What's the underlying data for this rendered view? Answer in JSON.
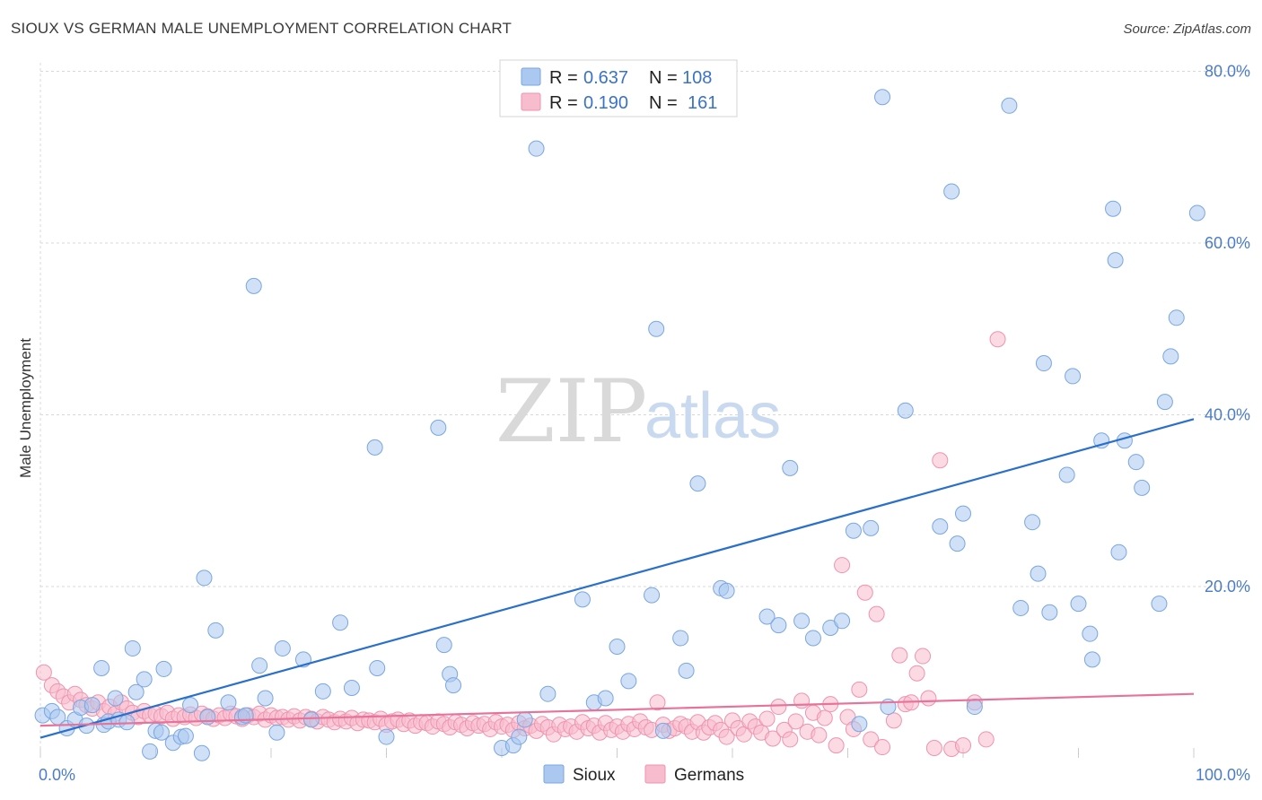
{
  "header": {
    "title": "SIOUX VS GERMAN MALE UNEMPLOYMENT CORRELATION CHART",
    "source": "Source: ZipAtlas.com"
  },
  "colors": {
    "sioux_fill": "#aac8f0",
    "sioux_stroke": "#7aa6e0",
    "sioux_line": "#2a6fcc",
    "germans_fill": "#f7bccd",
    "germans_stroke": "#ef93ae",
    "germans_line": "#e8739a",
    "grid": "#d8d8d8",
    "tick_text": "#4a7cc7"
  },
  "legend": {
    "rows": [
      {
        "r_label": "R =",
        "r_value": "0.637",
        "n_label": "N =",
        "n_value": "108"
      },
      {
        "r_label": "R =",
        "r_value": "0.190",
        "n_label": "N =",
        "n_value": "161"
      }
    ]
  },
  "watermark": {
    "part1": "ZIP",
    "part2": "atlas"
  },
  "chart_data": {
    "type": "scatter",
    "title": "SIOUX VS GERMAN MALE UNEMPLOYMENT CORRELATION CHART",
    "xlabel": "",
    "ylabel": "Male Unemployment",
    "xlim": [
      0,
      100
    ],
    "ylim": [
      -2.5,
      85
    ],
    "x_tick_labels": {
      "0": "0.0%",
      "100": "100.0%"
    },
    "y_ticks": [
      20,
      40,
      60,
      80
    ],
    "y_tick_labels": [
      "20.0%",
      "40.0%",
      "60.0%",
      "80.0%"
    ],
    "grid": true,
    "legend_position": "top-center",
    "series": [
      {
        "name": "Sioux",
        "R": 0.637,
        "N": 108,
        "trend": [
          [
            0,
            2.4
          ],
          [
            100,
            39.5
          ]
        ],
        "points": [
          [
            0.2,
            5
          ],
          [
            1,
            5.5
          ],
          [
            1.5,
            4.8
          ],
          [
            2.3,
            3.5
          ],
          [
            3,
            4.5
          ],
          [
            3.5,
            5.9
          ],
          [
            4,
            3.8
          ],
          [
            4.5,
            6.2
          ],
          [
            5.5,
            3.9
          ],
          [
            5.9,
            4.3
          ],
          [
            6.8,
            4.5
          ],
          [
            6.5,
            7
          ],
          [
            5.3,
            10.5
          ],
          [
            7.5,
            4.2
          ],
          [
            8,
            12.8
          ],
          [
            8.3,
            7.7
          ],
          [
            9,
            9.2
          ],
          [
            9.5,
            0.8
          ],
          [
            10,
            3.2
          ],
          [
            10.7,
            10.4
          ],
          [
            10.5,
            3
          ],
          [
            11.5,
            1.8
          ],
          [
            12.2,
            2.5
          ],
          [
            12.6,
            2.6
          ],
          [
            13,
            6.2
          ],
          [
            14,
            0.6
          ],
          [
            14.2,
            21
          ],
          [
            14.5,
            4.8
          ],
          [
            15.2,
            14.9
          ],
          [
            16.3,
            6.5
          ],
          [
            17.5,
            4.8
          ],
          [
            17.8,
            5
          ],
          [
            18.5,
            55
          ],
          [
            19,
            10.8
          ],
          [
            19.5,
            7
          ],
          [
            20.5,
            3
          ],
          [
            21,
            12.8
          ],
          [
            22.8,
            11.5
          ],
          [
            23.5,
            4.5
          ],
          [
            24.5,
            7.8
          ],
          [
            26,
            15.8
          ],
          [
            27,
            8.2
          ],
          [
            29,
            36.2
          ],
          [
            29.2,
            10.5
          ],
          [
            30,
            2.5
          ],
          [
            34.5,
            38.5
          ],
          [
            35,
            13.2
          ],
          [
            35.5,
            9.8
          ],
          [
            35.8,
            8.5
          ],
          [
            40,
            1.2
          ],
          [
            41,
            1.5
          ],
          [
            41.5,
            2.5
          ],
          [
            42,
            4.5
          ],
          [
            43,
            71
          ],
          [
            44,
            7.5
          ],
          [
            47,
            18.5
          ],
          [
            48,
            6.5
          ],
          [
            49,
            7
          ],
          [
            50,
            13
          ],
          [
            51,
            9
          ],
          [
            53,
            19
          ],
          [
            53.4,
            50
          ],
          [
            54,
            3.2
          ],
          [
            55.5,
            14
          ],
          [
            56,
            10.2
          ],
          [
            57,
            32
          ],
          [
            59,
            19.8
          ],
          [
            59.5,
            19.5
          ],
          [
            63,
            16.5
          ],
          [
            64,
            15.5
          ],
          [
            65,
            33.8
          ],
          [
            66,
            16
          ],
          [
            67,
            14
          ],
          [
            68.5,
            15.2
          ],
          [
            69.5,
            16
          ],
          [
            70.5,
            26.5
          ],
          [
            71,
            4
          ],
          [
            72,
            26.8
          ],
          [
            73,
            77
          ],
          [
            73.5,
            6
          ],
          [
            75,
            40.5
          ],
          [
            78,
            27
          ],
          [
            79,
            66
          ],
          [
            79.5,
            25
          ],
          [
            80,
            28.5
          ],
          [
            81,
            6
          ],
          [
            84,
            76
          ],
          [
            85,
            17.5
          ],
          [
            86,
            27.5
          ],
          [
            86.5,
            21.5
          ],
          [
            87,
            46
          ],
          [
            87.5,
            17
          ],
          [
            89,
            33
          ],
          [
            89.5,
            44.5
          ],
          [
            90,
            18
          ],
          [
            91,
            14.5
          ],
          [
            91.2,
            11.5
          ],
          [
            92,
            37
          ],
          [
            93,
            64
          ],
          [
            93.2,
            58
          ],
          [
            93.5,
            24
          ],
          [
            94,
            37
          ],
          [
            95,
            34.5
          ],
          [
            95.5,
            31.5
          ],
          [
            97,
            18
          ],
          [
            97.5,
            41.5
          ],
          [
            98,
            46.8
          ],
          [
            98.5,
            51.3
          ],
          [
            100.3,
            63.5
          ]
        ]
      },
      {
        "name": "Germans",
        "R": 0.19,
        "N": 161,
        "trend": [
          [
            0,
            3.8
          ],
          [
            100,
            7.5
          ]
        ],
        "points": [
          [
            0.3,
            10
          ],
          [
            1,
            8.5
          ],
          [
            1.5,
            7.8
          ],
          [
            2,
            7.2
          ],
          [
            2.5,
            6.5
          ],
          [
            3,
            7.5
          ],
          [
            3.5,
            6.8
          ],
          [
            4,
            6.2
          ],
          [
            4.5,
            5.8
          ],
          [
            5,
            6.5
          ],
          [
            5.5,
            5.5
          ],
          [
            6,
            6
          ],
          [
            6.5,
            5.2
          ],
          [
            7,
            6.5
          ],
          [
            7.5,
            5.8
          ],
          [
            8,
            5.3
          ],
          [
            8.5,
            4.8
          ],
          [
            9,
            5.5
          ],
          [
            9.5,
            5
          ],
          [
            10,
            5.2
          ],
          [
            10.5,
            4.9
          ],
          [
            11,
            5.3
          ],
          [
            11.5,
            4.6
          ],
          [
            12,
            5
          ],
          [
            12.5,
            4.8
          ],
          [
            13,
            5.1
          ],
          [
            13.5,
            4.7
          ],
          [
            14,
            5.2
          ],
          [
            14.5,
            4.9
          ],
          [
            15,
            4.6
          ],
          [
            15.5,
            5
          ],
          [
            16,
            4.7
          ],
          [
            16.5,
            5.2
          ],
          [
            17,
            4.9
          ],
          [
            17.5,
            4.6
          ],
          [
            18,
            5
          ],
          [
            18.5,
            4.8
          ],
          [
            19,
            5.2
          ],
          [
            19.5,
            4.5
          ],
          [
            20,
            5
          ],
          [
            20.5,
            4.7
          ],
          [
            21,
            4.8
          ],
          [
            21.5,
            4.5
          ],
          [
            22,
            4.9
          ],
          [
            22.5,
            4.4
          ],
          [
            23,
            4.8
          ],
          [
            23.5,
            4.6
          ],
          [
            24,
            4.3
          ],
          [
            24.5,
            4.8
          ],
          [
            25,
            4.5
          ],
          [
            25.5,
            4.2
          ],
          [
            26,
            4.6
          ],
          [
            26.5,
            4.3
          ],
          [
            27,
            4.7
          ],
          [
            27.5,
            4.1
          ],
          [
            28,
            4.5
          ],
          [
            28.5,
            4.4
          ],
          [
            29,
            4.2
          ],
          [
            29.5,
            4.6
          ],
          [
            30,
            3.9
          ],
          [
            30.5,
            4.3
          ],
          [
            31,
            4.5
          ],
          [
            31.5,
            4
          ],
          [
            32,
            4.4
          ],
          [
            32.5,
            3.8
          ],
          [
            33,
            4.2
          ],
          [
            33.5,
            4.1
          ],
          [
            34,
            3.7
          ],
          [
            34.5,
            4.3
          ],
          [
            35,
            4
          ],
          [
            35.5,
            3.6
          ],
          [
            36,
            4.2
          ],
          [
            36.5,
            3.9
          ],
          [
            37,
            3.5
          ],
          [
            37.5,
            4.1
          ],
          [
            38,
            3.8
          ],
          [
            38.5,
            4
          ],
          [
            39,
            3.4
          ],
          [
            39.5,
            4.2
          ],
          [
            40,
            3.7
          ],
          [
            40.5,
            3.9
          ],
          [
            41,
            3.3
          ],
          [
            41.5,
            4.1
          ],
          [
            42,
            3.5
          ],
          [
            42.5,
            3.8
          ],
          [
            43,
            3.2
          ],
          [
            43.5,
            4
          ],
          [
            44,
            3.6
          ],
          [
            44.5,
            2.8
          ],
          [
            45,
            3.9
          ],
          [
            45.5,
            3.4
          ],
          [
            46,
            3.7
          ],
          [
            46.5,
            3.1
          ],
          [
            47,
            4.2
          ],
          [
            47.5,
            3.5
          ],
          [
            48,
            3.8
          ],
          [
            48.5,
            3
          ],
          [
            49,
            4.1
          ],
          [
            49.5,
            3.3
          ],
          [
            50,
            3.7
          ],
          [
            50.5,
            3.1
          ],
          [
            51,
            4
          ],
          [
            51.5,
            3.4
          ],
          [
            52,
            4.3
          ],
          [
            52.5,
            3.6
          ],
          [
            53,
            3.3
          ],
          [
            53.5,
            6.5
          ],
          [
            54,
            3.9
          ],
          [
            54.5,
            3.2
          ],
          [
            55,
            3.5
          ],
          [
            55.5,
            4
          ],
          [
            56,
            3.7
          ],
          [
            56.5,
            3.1
          ],
          [
            57,
            4.2
          ],
          [
            57.5,
            3
          ],
          [
            58,
            3.6
          ],
          [
            58.5,
            4.1
          ],
          [
            59,
            3.3
          ],
          [
            59.5,
            2.5
          ],
          [
            60,
            4.4
          ],
          [
            60.5,
            3.5
          ],
          [
            61,
            2.8
          ],
          [
            61.5,
            4.3
          ],
          [
            62,
            3.7
          ],
          [
            62.5,
            3
          ],
          [
            63,
            4.6
          ],
          [
            63.5,
            2.3
          ],
          [
            64,
            6
          ],
          [
            64.5,
            3.3
          ],
          [
            65,
            2.2
          ],
          [
            65.5,
            4.3
          ],
          [
            66,
            6.7
          ],
          [
            66.5,
            3.1
          ],
          [
            67,
            5.3
          ],
          [
            67.5,
            2.7
          ],
          [
            68,
            4.7
          ],
          [
            68.5,
            6.3
          ],
          [
            69,
            1.5
          ],
          [
            69.5,
            22.5
          ],
          [
            70,
            4.8
          ],
          [
            70.5,
            3.4
          ],
          [
            71,
            8
          ],
          [
            71.5,
            19.3
          ],
          [
            72,
            2.2
          ],
          [
            72.5,
            16.8
          ],
          [
            73,
            1.3
          ],
          [
            74,
            4.4
          ],
          [
            74.5,
            12
          ],
          [
            75,
            6.3
          ],
          [
            75.5,
            6.5
          ],
          [
            76,
            9.9
          ],
          [
            76.5,
            11.9
          ],
          [
            77,
            7
          ],
          [
            77.5,
            1.2
          ],
          [
            78,
            34.7
          ],
          [
            79,
            1.1
          ],
          [
            80,
            1.5
          ],
          [
            81,
            6.5
          ],
          [
            82,
            2.2
          ],
          [
            83,
            48.8
          ]
        ]
      }
    ]
  },
  "bottom_legend": {
    "items": [
      "Sioux",
      "Germans"
    ]
  }
}
